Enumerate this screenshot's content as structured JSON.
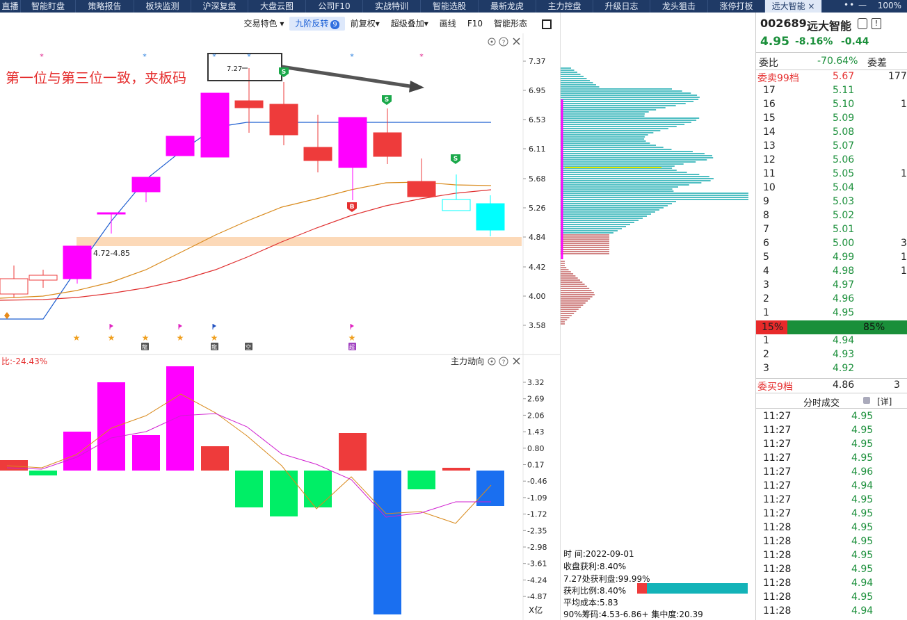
{
  "tabs": [
    {
      "label": "直播"
    },
    {
      "label": "智能盯盘"
    },
    {
      "label": "策略报告"
    },
    {
      "label": "板块监测"
    },
    {
      "label": "沪深复盘"
    },
    {
      "label": "大盘云图"
    },
    {
      "label": "公司F10"
    },
    {
      "label": "实战特训"
    },
    {
      "label": "智能选股"
    },
    {
      "label": "最新龙虎"
    },
    {
      "label": "主力控盘"
    },
    {
      "label": "升级日志"
    },
    {
      "label": "龙头狙击"
    },
    {
      "label": "涨停打板"
    },
    {
      "label": "远大智能"
    }
  ],
  "window": {
    "zoom_controls": "•• —",
    "zoom": "100%"
  },
  "toolbar": {
    "trade_feature": "交易特色 ▾",
    "nine_reverse": "九阶反转",
    "nine_badge": "9",
    "pre_adjust": "前复权▾",
    "super_overlay": "超级叠加▾",
    "draw_line": "画线",
    "f10": "F10",
    "smart_shape": "智能形态"
  },
  "kline": {
    "annotation": "第一位与第三位一致，夹板码",
    "high_label": "7.27",
    "range_label": "4.72-4.85",
    "price_ticks": [
      "7.37",
      "6.95",
      "6.53",
      "6.11",
      "5.68",
      "5.26",
      "4.84",
      "4.42",
      "4.00",
      "3.58"
    ],
    "markers": {
      "s": "S",
      "b": "B"
    },
    "colors": {
      "up": "#ff00ff",
      "down": "#ee3b3b",
      "cyan": "#00ffff",
      "ma_blue": "#1f5fd0",
      "ma_orange": "#d98a1c",
      "ma_red": "#e03030"
    },
    "tags": [
      "龍",
      "龍",
      "空",
      "超"
    ]
  },
  "indicator": {
    "label": "比:-24.43%",
    "name": "主力动向",
    "ticks": [
      "3.32",
      "2.69",
      "2.06",
      "1.43",
      "0.80",
      "0.17",
      "-0.46",
      "-1.09",
      "-1.72",
      "-2.35",
      "-2.98",
      "-3.61",
      "-4.24",
      "-4.87"
    ],
    "unit": "X亿"
  },
  "chips": {
    "time_label": "时      间:2022-09-01",
    "close_profit": "收盘获利:8.40%",
    "profit_at": "7.27处获利盘:99.99%",
    "profit_ratio": "获利比例:8.40%",
    "avg_cost": "平均成本:5.83",
    "range90": "90%筹码:4.53-6.86+ 集中度:20.39"
  },
  "quote": {
    "code": "002689",
    "name": "远大智能",
    "price": "4.95",
    "pct": "-8.16%",
    "change": "-0.44",
    "weibi_label": "委比",
    "weibi": "-70.64%",
    "weicha_label": "委差",
    "sell99_label": "委卖99档",
    "sell99_price": "5.67",
    "sell99_vol": "177",
    "sells": [
      {
        "n": "17",
        "p": "5.11",
        "v": ""
      },
      {
        "n": "16",
        "p": "5.10",
        "v": "1"
      },
      {
        "n": "15",
        "p": "5.09",
        "v": ""
      },
      {
        "n": "14",
        "p": "5.08",
        "v": ""
      },
      {
        "n": "13",
        "p": "5.07",
        "v": ""
      },
      {
        "n": "12",
        "p": "5.06",
        "v": ""
      },
      {
        "n": "11",
        "p": "5.05",
        "v": "1"
      },
      {
        "n": "10",
        "p": "5.04",
        "v": ""
      },
      {
        "n": "9",
        "p": "5.03",
        "v": ""
      },
      {
        "n": "8",
        "p": "5.02",
        "v": ""
      },
      {
        "n": "7",
        "p": "5.01",
        "v": ""
      },
      {
        "n": "6",
        "p": "5.00",
        "v": "3"
      },
      {
        "n": "5",
        "p": "4.99",
        "v": "1"
      },
      {
        "n": "4",
        "p": "4.98",
        "v": "1"
      },
      {
        "n": "3",
        "p": "4.97",
        "v": ""
      },
      {
        "n": "2",
        "p": "4.96",
        "v": ""
      },
      {
        "n": "1",
        "p": "4.95",
        "v": ""
      }
    ],
    "bar_left": "15%",
    "bar_right": "85%",
    "buys": [
      {
        "n": "1",
        "p": "4.94"
      },
      {
        "n": "2",
        "p": "4.93"
      },
      {
        "n": "3",
        "p": "4.92"
      }
    ],
    "buy9_label": "委买9档",
    "buy9_price": "4.86",
    "buy9_vol": "3",
    "ticks_title": "分时成交",
    "detail": "[详]",
    "ticks": [
      {
        "t": "11:27",
        "p": "4.95"
      },
      {
        "t": "11:27",
        "p": "4.95"
      },
      {
        "t": "11:27",
        "p": "4.95"
      },
      {
        "t": "11:27",
        "p": "4.95"
      },
      {
        "t": "11:27",
        "p": "4.96"
      },
      {
        "t": "11:27",
        "p": "4.94"
      },
      {
        "t": "11:27",
        "p": "4.95"
      },
      {
        "t": "11:27",
        "p": "4.95"
      },
      {
        "t": "11:28",
        "p": "4.95"
      },
      {
        "t": "11:28",
        "p": "4.95"
      },
      {
        "t": "11:28",
        "p": "4.95"
      },
      {
        "t": "11:28",
        "p": "4.95"
      },
      {
        "t": "11:28",
        "p": "4.94"
      },
      {
        "t": "11:28",
        "p": "4.95"
      },
      {
        "t": "11:28",
        "p": "4.94"
      }
    ]
  }
}
